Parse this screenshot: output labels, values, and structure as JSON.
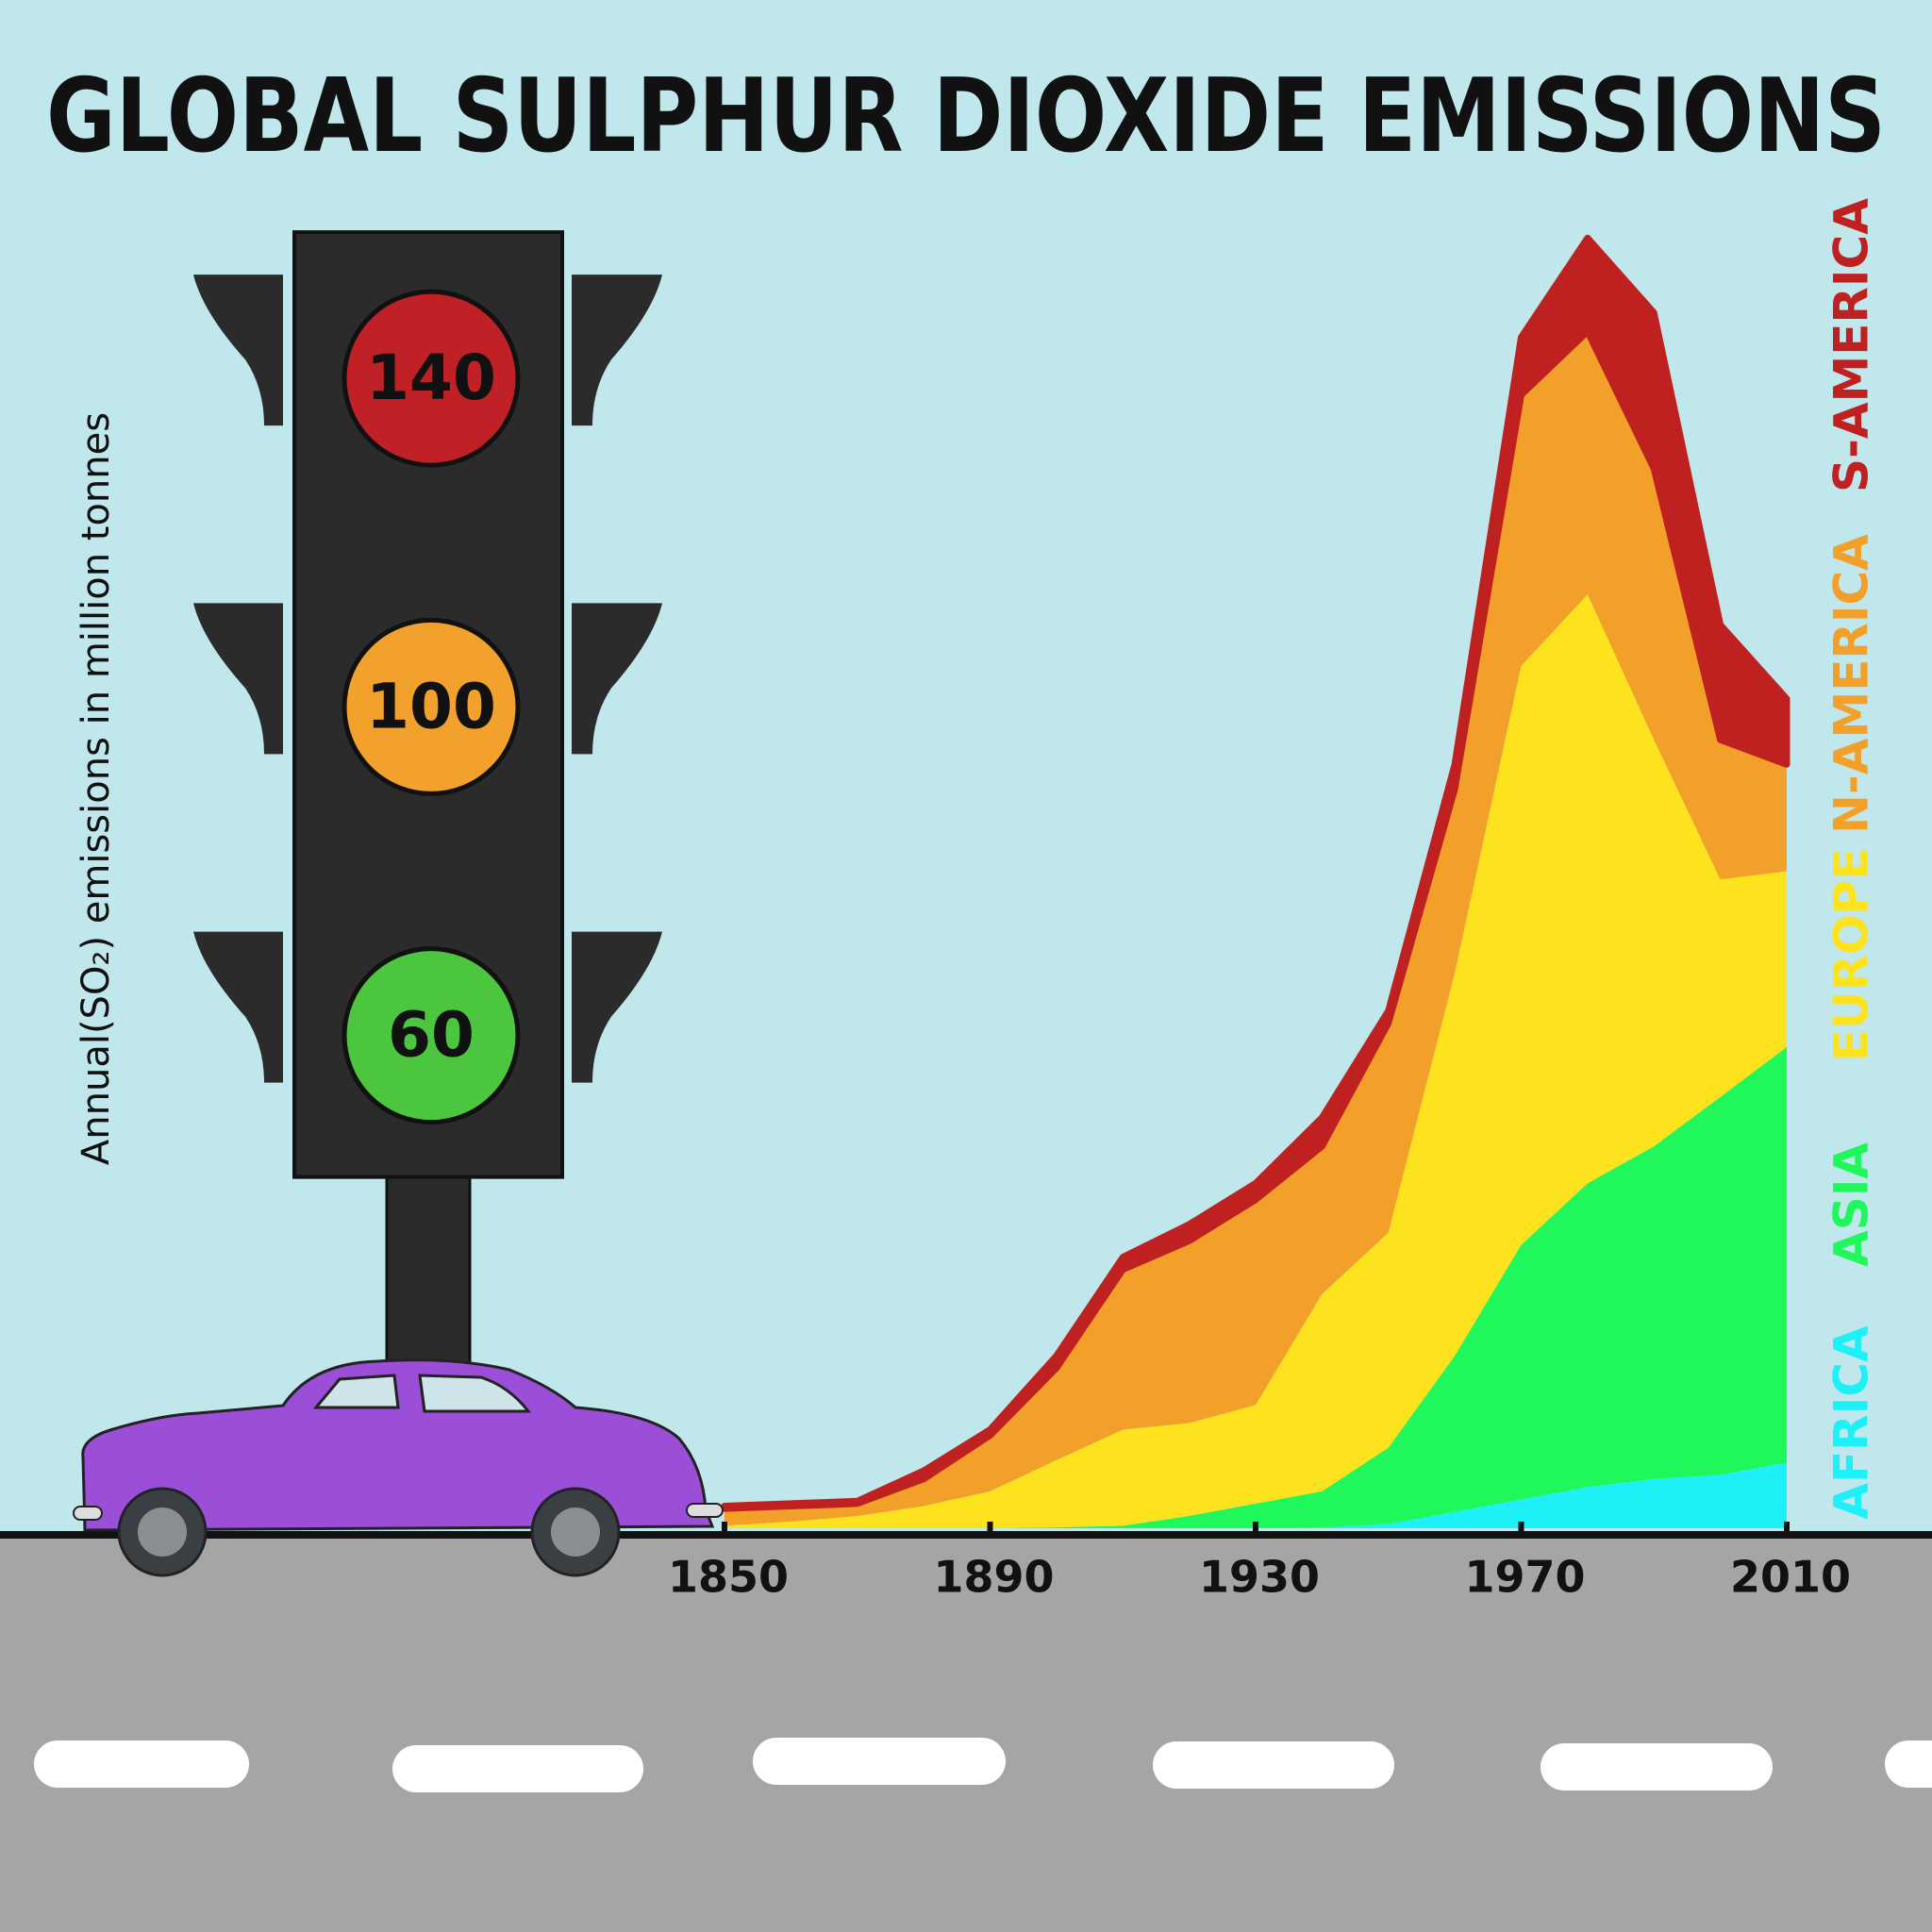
{
  "chart_data": {
    "type": "stacked_area",
    "title": "GLOBAL SULPHUR DIOXIDE EMISSIONS",
    "y_label": "Annual(SO₂) emissions in million tonnes",
    "x": [
      1850,
      1860,
      1870,
      1880,
      1890,
      1900,
      1910,
      1920,
      1930,
      1940,
      1950,
      1960,
      1970,
      1980,
      1990,
      2000,
      2010
    ],
    "xlim": [
      1850,
      2010
    ],
    "xticks": [
      1850,
      1890,
      1930,
      1970,
      2010
    ],
    "ylim": [
      0,
      160
    ],
    "yticks": [
      60,
      100,
      140
    ],
    "series": [
      {
        "name": "AFRICA",
        "color": "#1ef0f7",
        "values": [
          0,
          0,
          0,
          0,
          0,
          0,
          0,
          0,
          0,
          0.1,
          0.5,
          2,
          3.5,
          5,
          6,
          6.5,
          8
        ]
      },
      {
        "name": "ASIA",
        "color": "#1ff75a",
        "values": [
          0,
          0,
          0,
          0,
          0,
          0.1,
          0.3,
          1.5,
          3,
          4.4,
          9.3,
          19,
          31,
          37,
          40.5,
          46,
          50.6
        ]
      },
      {
        "name": "EUROPE",
        "color": "#fde31e",
        "values": [
          0.3,
          0.8,
          1.5,
          2.7,
          4.5,
          8.2,
          11.7,
          11.3,
          12,
          24,
          26.2,
          46.6,
          70.5,
          71.7,
          49.5,
          26.5,
          21.4
        ]
      },
      {
        "name": "N-AMERICA",
        "color": "#f2a02a",
        "values": [
          2.1,
          1.9,
          1.5,
          3.3,
          6.8,
          11.2,
          19.5,
          22.2,
          25,
          18,
          25.5,
          22.4,
          33,
          32,
          33,
          17,
          13
        ]
      },
      {
        "name": "S-AMERICA",
        "color": "#bf2121",
        "values": [
          0.3,
          0.3,
          0.3,
          1,
          0.7,
          1.5,
          1.5,
          2,
          2,
          3.5,
          1.5,
          3,
          7,
          11.4,
          19,
          14,
          8
        ]
      }
    ]
  }
}
